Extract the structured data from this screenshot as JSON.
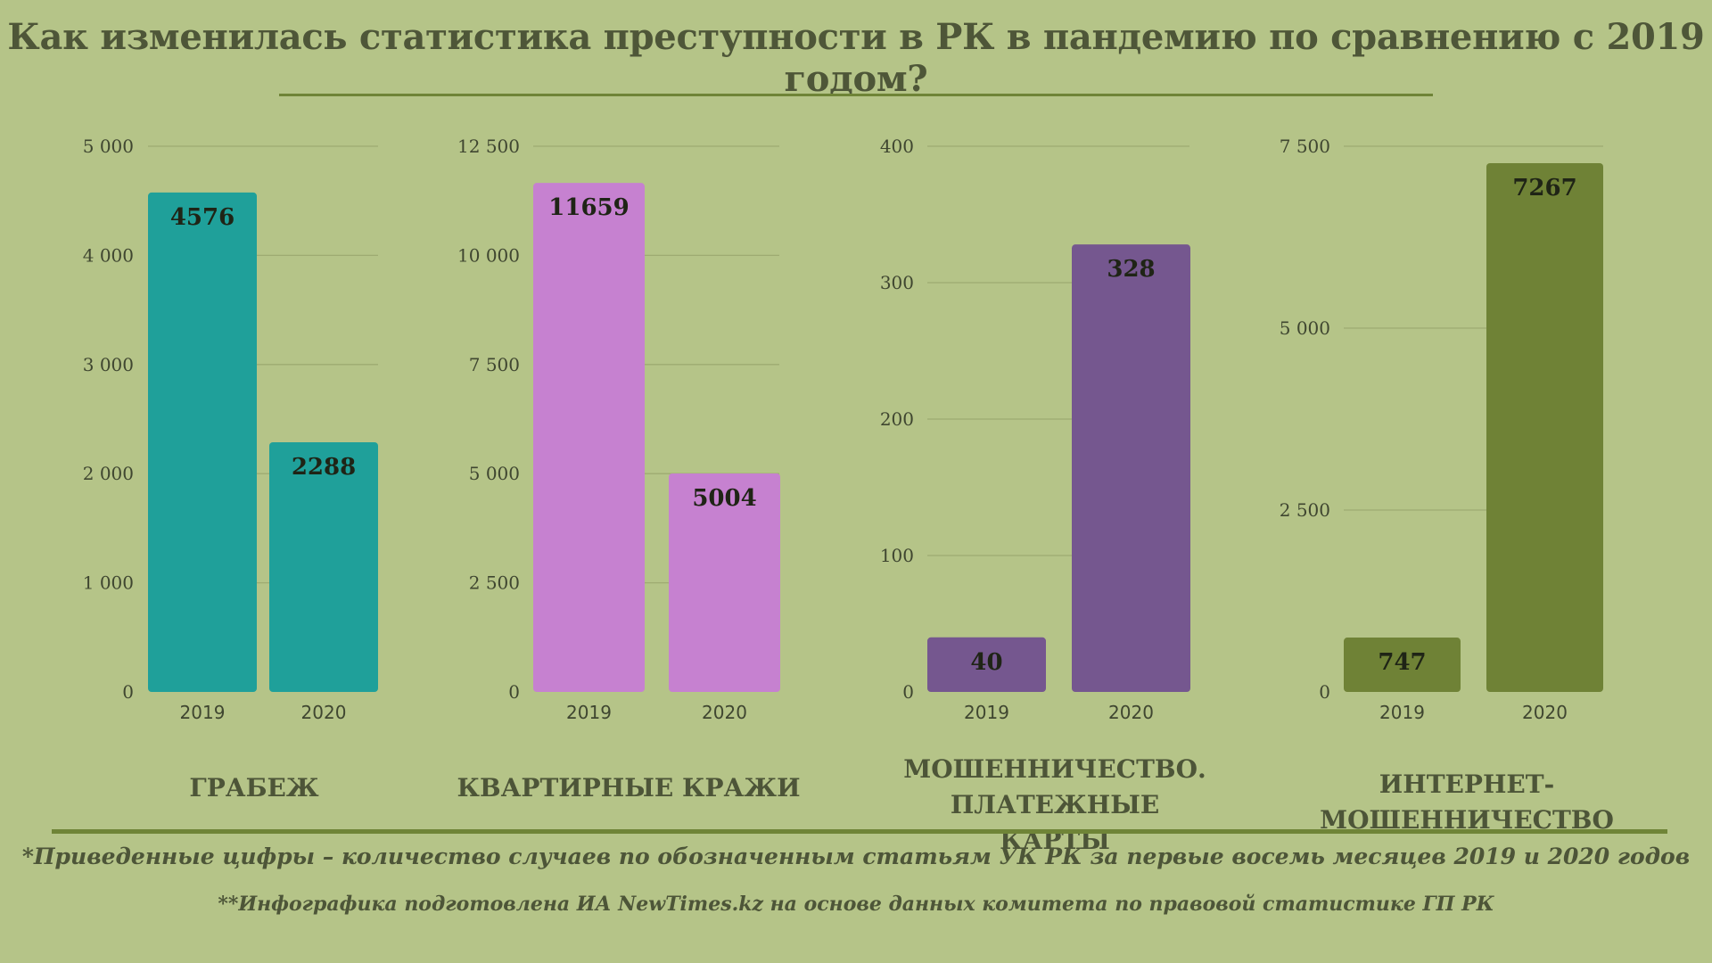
{
  "title": "Как изменилась статистика преступности в РК в пандемию по сравнению с 2019 годом?",
  "colors": {
    "background": "#b5c488",
    "rule": "#6f8437",
    "grid": "#9eab72",
    "text": "#4d5538"
  },
  "chart_data": [
    {
      "type": "bar",
      "title": "ГРАБЕЖ",
      "categories": [
        "2019",
        "2020"
      ],
      "values": [
        4576,
        2288
      ],
      "value_labels": [
        "4576",
        "2288"
      ],
      "ylim": [
        0,
        5000
      ],
      "ticks": [
        0,
        1000,
        2000,
        3000,
        4000,
        5000
      ],
      "tick_labels": [
        "0",
        "1 000",
        "2 000",
        "3 000",
        "4 000",
        "5 000"
      ],
      "color": "#1fa09a",
      "grid": true
    },
    {
      "type": "bar",
      "title": "КВАРТИРНЫЕ КРАЖИ",
      "categories": [
        "2019",
        "2020"
      ],
      "values": [
        11659,
        5004
      ],
      "value_labels": [
        "11659",
        "5004"
      ],
      "ylim": [
        0,
        12500
      ],
      "ticks": [
        0,
        2500,
        5000,
        7500,
        10000,
        12500
      ],
      "tick_labels": [
        "0",
        "2 500",
        "5 000",
        "7 500",
        "10 000",
        "12 500"
      ],
      "color": "#c681d0",
      "grid": true
    },
    {
      "type": "bar",
      "title": "МОШЕННИЧЕСТВО.\nПЛАТЕЖНЫЕ КАРТЫ",
      "categories": [
        "2019",
        "2020"
      ],
      "values": [
        40,
        328
      ],
      "value_labels": [
        "40",
        "328"
      ],
      "ylim": [
        0,
        400
      ],
      "ticks": [
        0,
        100,
        200,
        300,
        400
      ],
      "tick_labels": [
        "0",
        "100",
        "200",
        "300",
        "400"
      ],
      "color": "#75578f",
      "grid": true
    },
    {
      "type": "bar",
      "title": "ИНТЕРНЕТ-МОШЕННИЧЕСТВО",
      "categories": [
        "2019",
        "2020"
      ],
      "values": [
        747,
        7267
      ],
      "value_labels": [
        "747",
        "7267"
      ],
      "ylim": [
        0,
        7500
      ],
      "ticks": [
        0,
        2500,
        5000,
        7500
      ],
      "tick_labels": [
        "0",
        "2 500",
        "5 000",
        "7 500"
      ],
      "color": "#6f8236",
      "grid": true
    }
  ],
  "footnotes": {
    "note1": "*Приведенные цифры – количество случаев по обозначенным статьям УК РК за первые восемь месяцев 2019 и 2020 годов",
    "note2": "**Инфографика подготовлена ИА NewTimes.kz на основе данных комитета по правовой статистике ГП РК"
  }
}
